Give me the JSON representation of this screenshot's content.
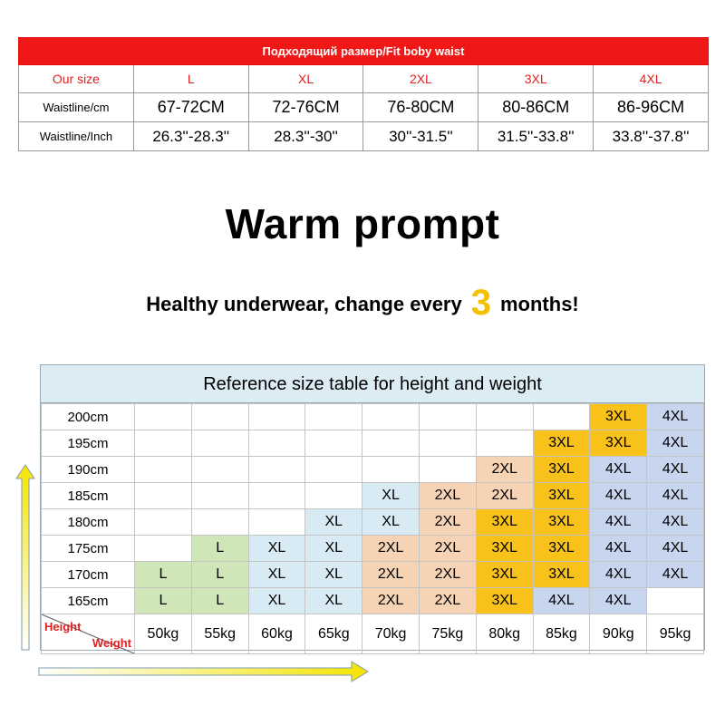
{
  "waist_table": {
    "title": "Подходящий размер/Fit boby waist",
    "size_header": "Our size",
    "sizes": [
      "L",
      "XL",
      "2XL",
      "3XL",
      "4XL"
    ],
    "cm_label": "Waistline/cm",
    "cm_values": [
      "67-72CM",
      "72-76CM",
      "76-80CM",
      "80-86CM",
      "86-96CM"
    ],
    "inch_label": "Waistline/Inch",
    "inch_values": [
      "26.3''-28.3''",
      "28.3''-30''",
      "30''-31.5''",
      "31.5''-33.8''",
      "33.8''-37.8''"
    ]
  },
  "headline": "Warm prompt",
  "notice": {
    "before": "Healthy underwear, change every",
    "number": "3",
    "after": "months!"
  },
  "reference": {
    "title": "Reference size table for height and weight",
    "rows": [
      {
        "height": "200cm",
        "cells": [
          "",
          "",
          "",
          "",
          "",
          "",
          "",
          "",
          "3XL",
          "4XL"
        ]
      },
      {
        "height": "195cm",
        "cells": [
          "",
          "",
          "",
          "",
          "",
          "",
          "",
          "3XL",
          "3XL",
          "4XL"
        ]
      },
      {
        "height": "190cm",
        "cells": [
          "",
          "",
          "",
          "",
          "",
          "",
          "2XL",
          "3XL",
          "4XL",
          "4XL"
        ]
      },
      {
        "height": "185cm",
        "cells": [
          "",
          "",
          "",
          "",
          "XL",
          "2XL",
          "2XL",
          "3XL",
          "4XL",
          "4XL"
        ]
      },
      {
        "height": "180cm",
        "cells": [
          "",
          "",
          "",
          "XL",
          "XL",
          "2XL",
          "3XL",
          "3XL",
          "4XL",
          "4XL"
        ]
      },
      {
        "height": "175cm",
        "cells": [
          "",
          "L",
          "XL",
          "XL",
          "2XL",
          "2XL",
          "3XL",
          "3XL",
          "4XL",
          "4XL"
        ]
      },
      {
        "height": "170cm",
        "cells": [
          "L",
          "L",
          "XL",
          "XL",
          "2XL",
          "2XL",
          "3XL",
          "3XL",
          "4XL",
          "4XL"
        ]
      },
      {
        "height": "165cm",
        "cells": [
          "L",
          "L",
          "XL",
          "XL",
          "2XL",
          "2XL",
          "3XL",
          "4XL",
          "4XL",
          ""
        ]
      }
    ],
    "corner_height_label": "Height",
    "corner_weight_label": "Weight",
    "weights": [
      "50kg",
      "55kg",
      "60kg",
      "65kg",
      "70kg",
      "75kg",
      "80kg",
      "85kg",
      "90kg",
      "95kg"
    ]
  },
  "colors": {
    "title_bar": "#f01717",
    "L": "#cfe7b8",
    "XL": "#d8eaf4",
    "2XL": "#f7d3b5",
    "3XL": "#f9c21a",
    "4XL": "#c7d5ee",
    "accent_number": "#f3c100"
  }
}
